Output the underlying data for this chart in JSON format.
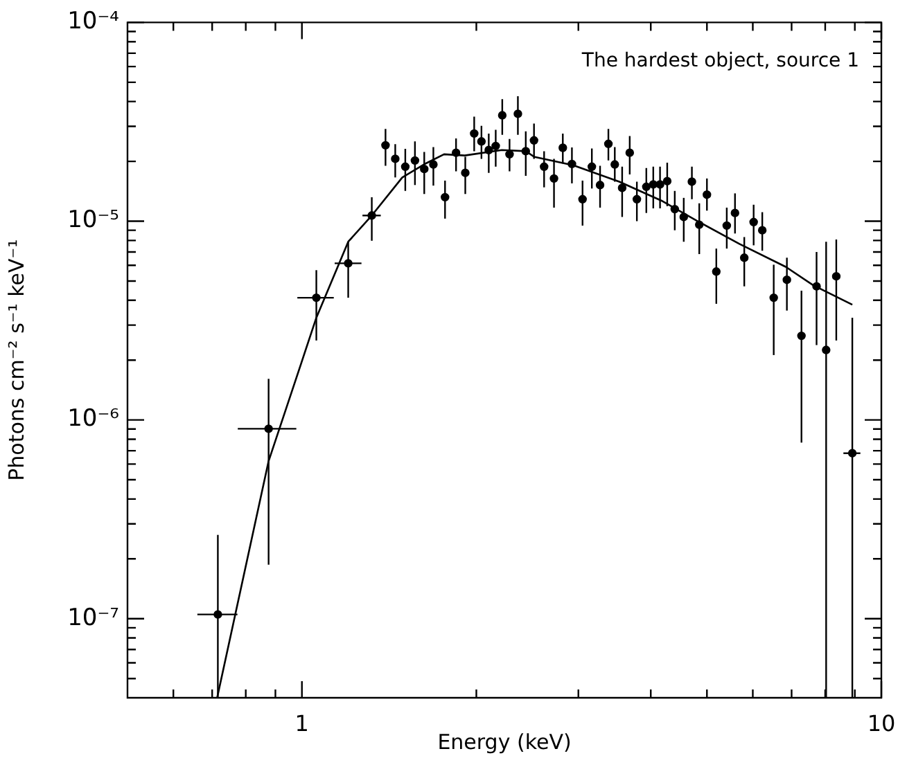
{
  "chart_data": {
    "type": "scatter",
    "xlabel": "Energy (keV)",
    "ylabel": "Photons cm⁻² s⁻¹ keV⁻¹",
    "annotations": [
      "The hardest object, source 1"
    ],
    "log": "xy",
    "grid": false,
    "legend": false,
    "xlim": [
      0.5,
      10
    ],
    "ylim": [
      4e-08,
      0.0001
    ],
    "xticks": [
      {
        "value": 0.6,
        "label": null
      },
      {
        "value": 0.7,
        "label": null
      },
      {
        "value": 0.8,
        "label": null
      },
      {
        "value": 0.9,
        "label": null
      },
      {
        "value": 1,
        "label": "1"
      },
      {
        "value": 2,
        "label": null
      },
      {
        "value": 3,
        "label": null
      },
      {
        "value": 4,
        "label": null
      },
      {
        "value": 5,
        "label": null
      },
      {
        "value": 6,
        "label": null
      },
      {
        "value": 7,
        "label": null
      },
      {
        "value": 8,
        "label": null
      },
      {
        "value": 9,
        "label": null
      },
      {
        "value": 10,
        "label": "10"
      }
    ],
    "yticks": [
      {
        "value": 5e-08,
        "label": null
      },
      {
        "value": 6e-08,
        "label": null
      },
      {
        "value": 7e-08,
        "label": null
      },
      {
        "value": 8e-08,
        "label": null
      },
      {
        "value": 9e-08,
        "label": null
      },
      {
        "value": 1e-07,
        "label": "10⁻⁷"
      },
      {
        "value": 2e-07,
        "label": null
      },
      {
        "value": 3e-07,
        "label": null
      },
      {
        "value": 4e-07,
        "label": null
      },
      {
        "value": 5e-07,
        "label": null
      },
      {
        "value": 6e-07,
        "label": null
      },
      {
        "value": 7e-07,
        "label": null
      },
      {
        "value": 8e-07,
        "label": null
      },
      {
        "value": 9e-07,
        "label": null
      },
      {
        "value": 1e-06,
        "label": "10⁻⁶"
      },
      {
        "value": 2e-06,
        "label": null
      },
      {
        "value": 3e-06,
        "label": null
      },
      {
        "value": 4e-06,
        "label": null
      },
      {
        "value": 5e-06,
        "label": null
      },
      {
        "value": 6e-06,
        "label": null
      },
      {
        "value": 7e-06,
        "label": null
      },
      {
        "value": 8e-06,
        "label": null
      },
      {
        "value": 9e-06,
        "label": null
      },
      {
        "value": 1e-05,
        "label": "10⁻⁵"
      },
      {
        "value": 2e-05,
        "label": null
      },
      {
        "value": 3e-05,
        "label": null
      },
      {
        "value": 4e-05,
        "label": null
      },
      {
        "value": 5e-05,
        "label": null
      },
      {
        "value": 6e-05,
        "label": null
      },
      {
        "value": 7e-05,
        "label": null
      },
      {
        "value": 8e-05,
        "label": null
      },
      {
        "value": 9e-05,
        "label": null
      },
      {
        "value": 0.0001,
        "label": "10⁻⁴"
      }
    ],
    "series": [
      {
        "color": "#000000",
        "marker": "circle",
        "x": [
          0.716,
          0.876,
          1.059,
          1.202,
          1.32,
          1.394,
          1.449,
          1.508,
          1.567,
          1.626,
          1.686,
          1.766,
          1.845,
          1.914,
          1.983,
          2.041,
          2.101,
          2.16,
          2.217,
          2.282,
          2.359,
          2.434,
          2.515,
          2.618,
          2.723,
          2.82,
          2.924,
          3.05,
          3.165,
          3.27,
          3.38,
          3.467,
          3.57,
          3.679,
          3.785,
          3.93,
          4.04,
          4.15,
          4.27,
          4.4,
          4.56,
          4.71,
          4.85,
          5.0,
          5.19,
          5.41,
          5.59,
          5.8,
          6.02,
          6.23,
          6.52,
          6.87,
          7.28,
          7.73,
          8.03,
          8.36,
          8.91
        ],
        "values": [
          1.05e-07,
          9.03e-07,
          4.12e-06,
          6.14e-06,
          1.068e-05,
          2.41e-05,
          2.06e-05,
          1.88e-05,
          2.02e-05,
          1.83e-05,
          1.93e-05,
          1.32e-05,
          2.21e-05,
          1.75e-05,
          2.76e-05,
          2.52e-05,
          2.28e-05,
          2.39e-05,
          3.41e-05,
          2.17e-05,
          3.47e-05,
          2.25e-05,
          2.55e-05,
          1.88e-05,
          1.64e-05,
          2.34e-05,
          1.94e-05,
          1.29e-05,
          1.88e-05,
          1.52e-05,
          2.45e-05,
          1.93e-05,
          1.47e-05,
          2.21e-05,
          1.29e-05,
          1.49e-05,
          1.53e-05,
          1.53e-05,
          1.59e-05,
          1.15e-05,
          1.05e-05,
          1.58e-05,
          9.6e-06,
          1.36e-05,
          5.58e-06,
          9.5e-06,
          1.1e-05,
          6.55e-06,
          9.9e-06,
          9e-06,
          4.12e-06,
          5.07e-06,
          2.65e-06,
          4.7e-06,
          2.25e-06,
          5.28e-06,
          6.8e-07
        ],
        "errors": [
          [
            4e-08,
            2.64e-07
          ],
          [
            1.87e-07,
            1.61e-06
          ],
          [
            2.51e-06,
            5.67e-06
          ],
          [
            4.12e-06,
            7.88e-06
          ],
          [
            7.97e-06,
            1.32e-05
          ],
          [
            1.9e-05,
            2.91e-05
          ],
          [
            1.66e-05,
            2.44e-05
          ],
          [
            1.42e-05,
            2.31e-05
          ],
          [
            1.52e-05,
            2.52e-05
          ],
          [
            1.37e-05,
            2.23e-05
          ],
          [
            1.51e-05,
            2.36e-05
          ],
          [
            1.03e-05,
            1.6e-05
          ],
          [
            1.78e-05,
            2.61e-05
          ],
          [
            1.37e-05,
            2.11e-05
          ],
          [
            2.25e-05,
            3.36e-05
          ],
          [
            2.06e-05,
            3.02e-05
          ],
          [
            1.75e-05,
            2.76e-05
          ],
          [
            1.88e-05,
            2.88e-05
          ],
          [
            2.72e-05,
            4.11e-05
          ],
          [
            1.78e-05,
            2.59e-05
          ],
          [
            2.72e-05,
            4.25e-05
          ],
          [
            1.69e-05,
            2.83e-05
          ],
          [
            2.06e-05,
            3.1e-05
          ],
          [
            1.48e-05,
            2.25e-05
          ],
          [
            1.17e-05,
            2.06e-05
          ],
          [
            1.95e-05,
            2.76e-05
          ],
          [
            1.55e-05,
            2.35e-05
          ],
          [
            9.5e-06,
            1.6e-05
          ],
          [
            1.46e-05,
            2.32e-05
          ],
          [
            1.17e-05,
            1.9e-05
          ],
          [
            2.02e-05,
            2.91e-05
          ],
          [
            1.58e-05,
            2.36e-05
          ],
          [
            1.05e-05,
            1.88e-05
          ],
          [
            1.72e-05,
            2.68e-05
          ],
          [
            1e-05,
            1.58e-05
          ],
          [
            1.1e-05,
            1.85e-05
          ],
          [
            1.16e-05,
            1.88e-05
          ],
          [
            1.16e-05,
            1.88e-05
          ],
          [
            1.19e-05,
            1.97e-05
          ],
          [
            9e-06,
            1.42e-05
          ],
          [
            7.88e-06,
            1.31e-05
          ],
          [
            1.29e-05,
            1.88e-05
          ],
          [
            6.83e-06,
            1.23e-05
          ],
          [
            1.13e-05,
            1.64e-05
          ],
          [
            3.84e-06,
            7.28e-06
          ],
          [
            7.28e-06,
            1.17e-05
          ],
          [
            8.67e-06,
            1.38e-05
          ],
          [
            4.7e-06,
            8.32e-06
          ],
          [
            7.56e-06,
            1.21e-05
          ],
          [
            7.1e-06,
            1.11e-05
          ],
          [
            2.12e-06,
            6.04e-06
          ],
          [
            3.55e-06,
            6.55e-06
          ],
          [
            7.69e-07,
            4.47e-06
          ],
          [
            2.38e-06,
            7e-06
          ],
          [
            4e-08,
            7.88e-06
          ],
          [
            2.51e-06,
            8.09e-06
          ],
          [
            4e-08,
            3.27e-06
          ]
        ],
        "xerrors": [
          [
            0.66,
            0.774
          ],
          [
            0.775,
            0.978
          ],
          [
            0.982,
            1.135
          ],
          [
            1.139,
            1.267
          ],
          [
            1.272,
            1.368
          ],
          null,
          null,
          null,
          null,
          null,
          null,
          null,
          null,
          null,
          null,
          null,
          null,
          null,
          null,
          null,
          null,
          null,
          null,
          null,
          null,
          null,
          null,
          null,
          null,
          null,
          null,
          null,
          null,
          null,
          null,
          null,
          null,
          null,
          null,
          null,
          null,
          null,
          null,
          null,
          null,
          null,
          null,
          null,
          null,
          null,
          null,
          null,
          null,
          null,
          null,
          null,
          [
            8.6,
            9.2
          ]
        ]
      },
      {
        "type": "line",
        "color": "#000000",
        "line_style": "solid",
        "x": [
          0.714,
          0.876,
          0.9967,
          1.059,
          1.202,
          1.32,
          1.49,
          1.635,
          1.759,
          1.91,
          2.213,
          2.434,
          2.515,
          2.94,
          3.53,
          4.17,
          4.82,
          5.69,
          6.84,
          7.63,
          8.91
        ],
        "values": [
          4e-08,
          6.21e-07,
          1.92e-06,
          3.27e-06,
          7.88e-06,
          1.068e-05,
          1.66e-05,
          1.95e-05,
          2.17e-05,
          2.14e-05,
          2.28e-05,
          2.25e-05,
          2.11e-05,
          1.91e-05,
          1.58e-05,
          1.27e-05,
          1e-05,
          7.68e-06,
          5.89e-06,
          4.76e-06,
          3.8e-06
        ]
      }
    ]
  }
}
